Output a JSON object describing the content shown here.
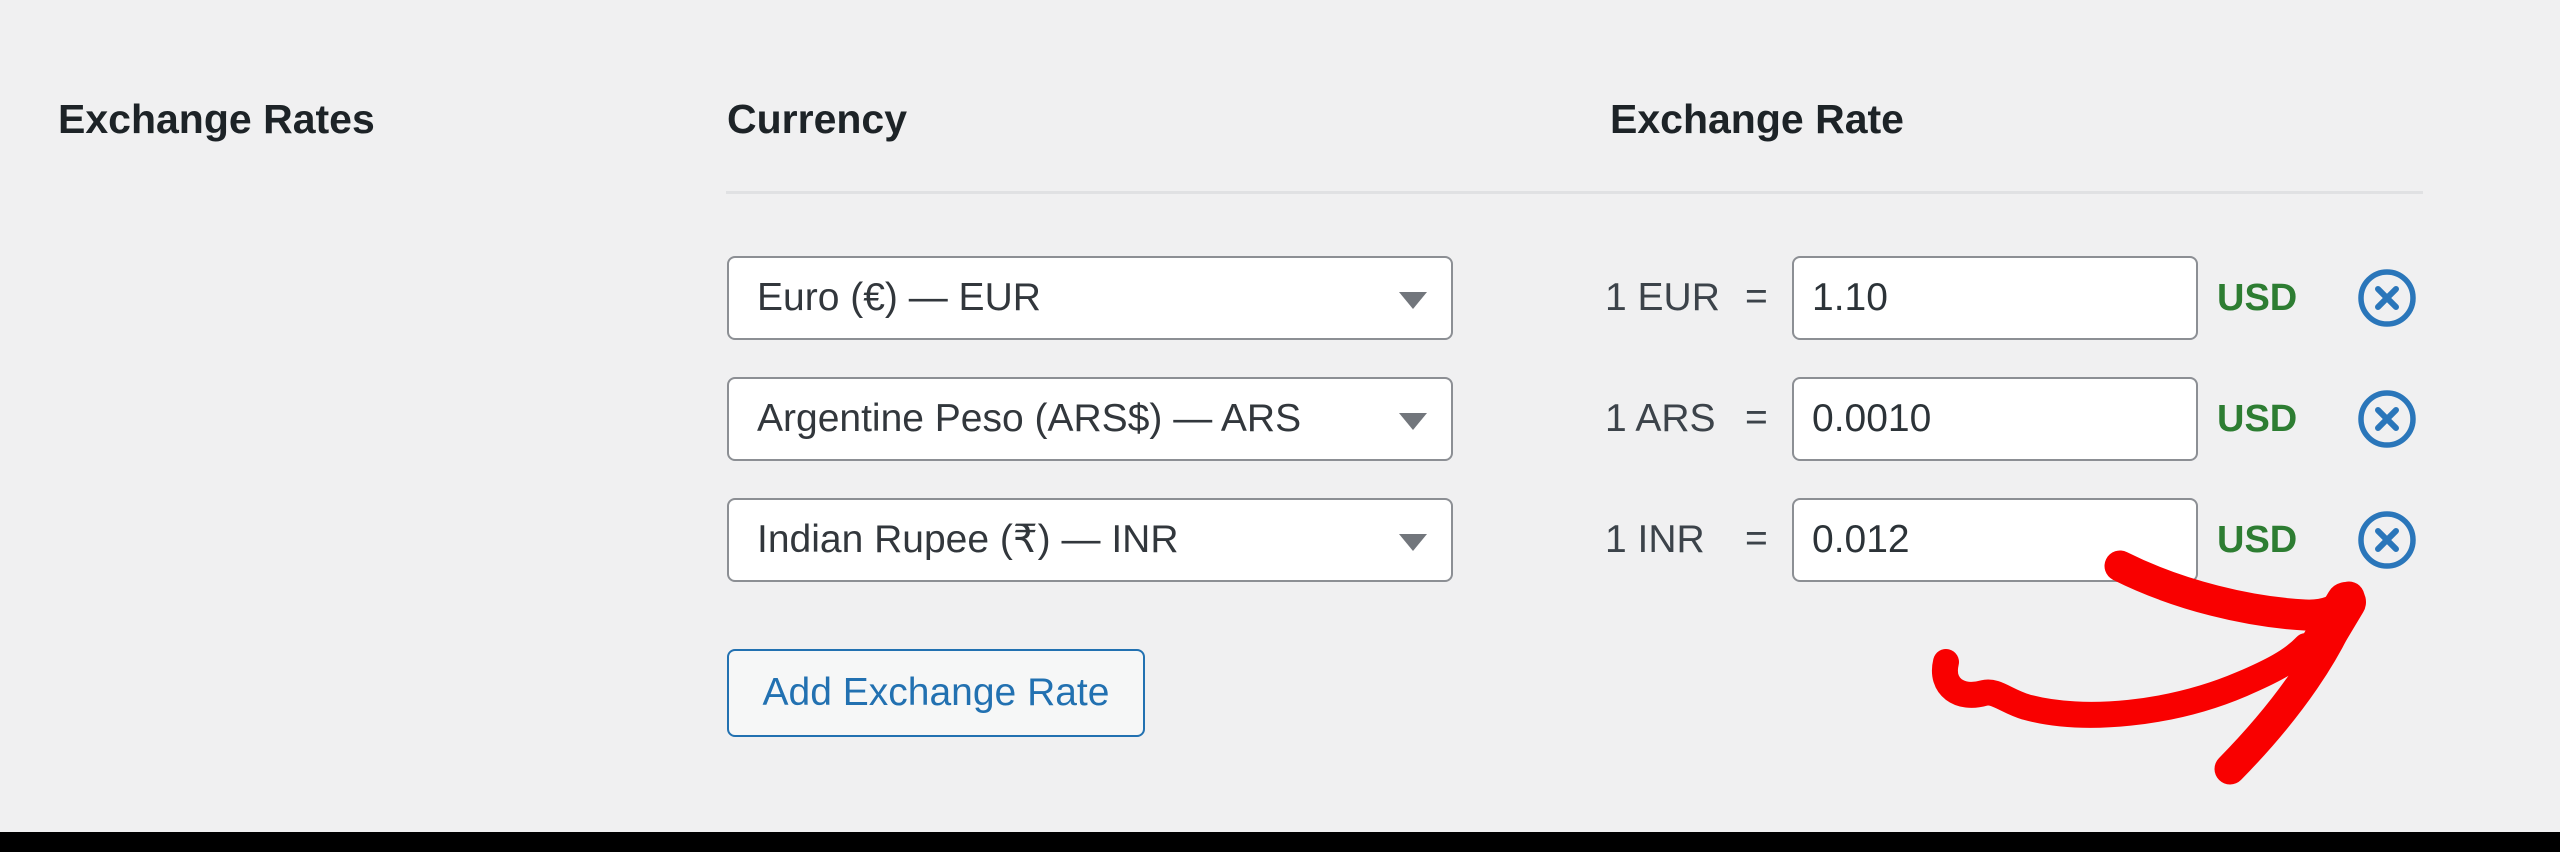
{
  "section_label": "Exchange Rates",
  "columns": {
    "currency": "Currency",
    "rate": "Exchange Rate"
  },
  "rows": [
    {
      "currency_option": "Euro (€) — EUR",
      "base": "1 EUR",
      "equals": "=",
      "rate_value": "1.10",
      "target": "USD"
    },
    {
      "currency_option": "Argentine Peso (ARS$) — ARS",
      "base": "1 ARS",
      "equals": "=",
      "rate_value": "0.0010",
      "target": "USD"
    },
    {
      "currency_option": "Indian Rupee (₹) — INR",
      "base": "1 INR",
      "equals": "=",
      "rate_value": "0.012",
      "target": "USD"
    }
  ],
  "add_button_label": "Add Exchange Rate",
  "annotation": {
    "type": "hand-drawn-arrow",
    "points_to": "remove-button-of-third-row",
    "color": "#f90000"
  },
  "colors": {
    "page_bg": "#f0f0f1",
    "text_dark": "#1d2327",
    "divider": "#e0e1e3",
    "field_border": "#8c8f94",
    "accent": "#2271b1",
    "circle_blue": "#2a76ba",
    "green": "#2d7d32",
    "red": "#f90000",
    "bar_black": "#000000"
  }
}
